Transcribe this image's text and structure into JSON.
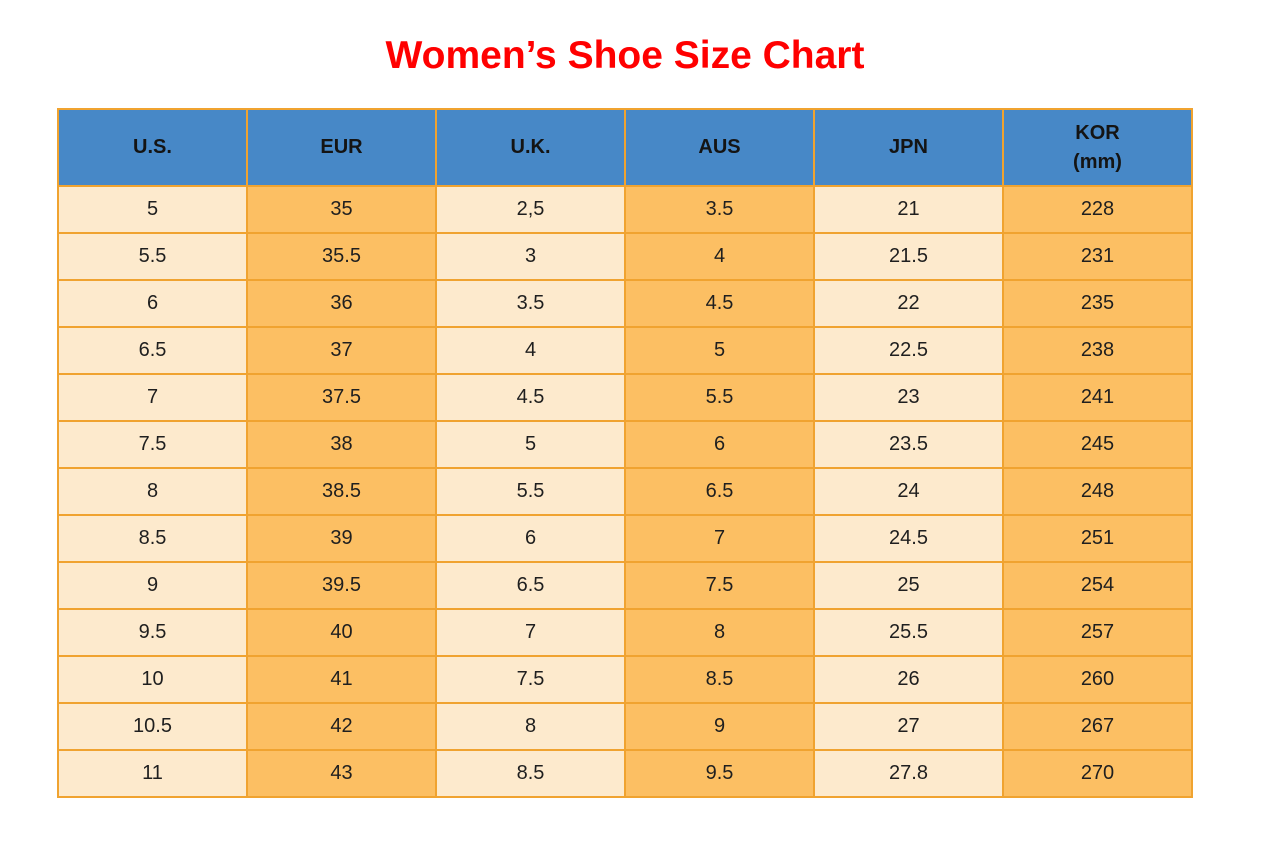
{
  "page": {
    "title": "Women’s Shoe Size Chart"
  },
  "colors": {
    "title": "#FF0000",
    "header_bg": "#4788C7",
    "cell_light": "#FDEACD",
    "cell_dark": "#FCBF63",
    "border": "#F0A330",
    "text": "#1F1F1F"
  },
  "chart_data": {
    "type": "table",
    "title": "Women’s Shoe Size Chart",
    "columns": [
      {
        "key": "us",
        "label": "U.S.",
        "shade": "light"
      },
      {
        "key": "eur",
        "label": "EUR",
        "shade": "dark"
      },
      {
        "key": "uk",
        "label": "U.K.",
        "shade": "light"
      },
      {
        "key": "aus",
        "label": "AUS",
        "shade": "dark"
      },
      {
        "key": "jpn",
        "label": "JPN",
        "shade": "light"
      },
      {
        "key": "kor",
        "label": "KOR\n(mm)",
        "shade": "dark"
      }
    ],
    "rows": [
      [
        "5",
        "35",
        "2,5",
        "3.5",
        "21",
        "228"
      ],
      [
        "5.5",
        "35.5",
        "3",
        "4",
        "21.5",
        "231"
      ],
      [
        "6",
        "36",
        "3.5",
        "4.5",
        "22",
        "235"
      ],
      [
        "6.5",
        "37",
        "4",
        "5",
        "22.5",
        "238"
      ],
      [
        "7",
        "37.5",
        "4.5",
        "5.5",
        "23",
        "241"
      ],
      [
        "7.5",
        "38",
        "5",
        "6",
        "23.5",
        "245"
      ],
      [
        "8",
        "38.5",
        "5.5",
        "6.5",
        "24",
        "248"
      ],
      [
        "8.5",
        "39",
        "6",
        "7",
        "24.5",
        "251"
      ],
      [
        "9",
        "39.5",
        "6.5",
        "7.5",
        "25",
        "254"
      ],
      [
        "9.5",
        "40",
        "7",
        "8",
        "25.5",
        "257"
      ],
      [
        "10",
        "41",
        "7.5",
        "8.5",
        "26",
        "260"
      ],
      [
        "10.5",
        "42",
        "8",
        "9",
        "27",
        "267"
      ],
      [
        "11",
        "43",
        "8.5",
        "9.5",
        "27.8",
        "270"
      ]
    ]
  }
}
